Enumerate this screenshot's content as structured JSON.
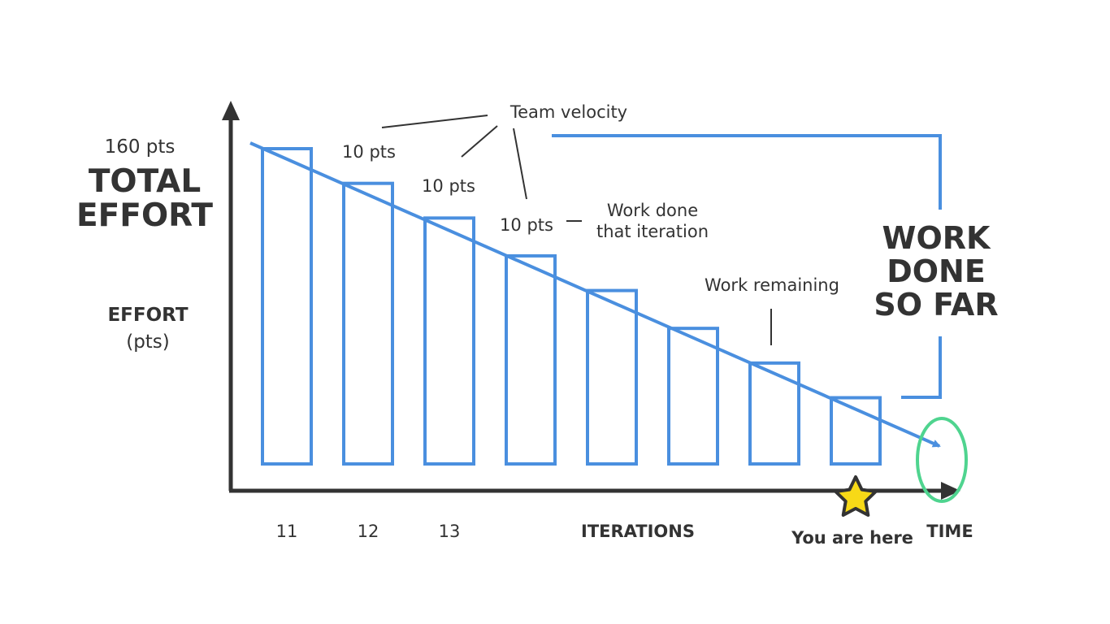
{
  "colors": {
    "bar_outline": "#4a8fdf",
    "trend_line": "#4a8fdf",
    "bracket": "#4a8fdf",
    "axis": "#333333",
    "text": "#333333",
    "end_marker": "#4fd48f",
    "star_fill": "#f7d917",
    "star_outline": "#333333"
  },
  "y_axis": {
    "top_value": "160 pts",
    "total_line1": "TOTAL",
    "total_line2": "EFFORT",
    "label_line1": "EFFORT",
    "label_line2": "(pts)"
  },
  "x_axis": {
    "tick_labels": [
      "11",
      "12",
      "13"
    ],
    "center_label": "ITERATIONS",
    "end_label": "TIME",
    "current_marker_label": "You are here",
    "current_marker_icon": "star-icon"
  },
  "annotations": {
    "velocity_title": "Team velocity",
    "velocity_pts": [
      "10 pts",
      "10 pts",
      "10 pts"
    ],
    "work_done_line1": "Work done",
    "work_done_line2": "that iteration",
    "work_remaining": "Work remaining",
    "work_done_so_far_line1": "WORK",
    "work_done_so_far_line2": "DONE",
    "work_done_so_far_line3": "SO FAR"
  },
  "bars": {
    "count": 8,
    "remaining_fraction": [
      1.0,
      0.89,
      0.78,
      0.66,
      0.55,
      0.43,
      0.32,
      0.21
    ]
  }
}
